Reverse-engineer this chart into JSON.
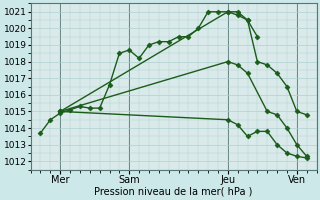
{
  "background_color": "#cce8e8",
  "plot_bg": "#daeaea",
  "grid_color": "#b0d0d0",
  "line_color": "#1a5c1a",
  "xlabel": "Pression niveau de la mer( hPa )",
  "ylim": [
    1011.5,
    1021.5
  ],
  "yticks": [
    1012,
    1013,
    1014,
    1015,
    1016,
    1017,
    1018,
    1019,
    1020,
    1021
  ],
  "xlim": [
    -0.5,
    14.0
  ],
  "xtick_labels": [
    "Mer",
    "Sam",
    "Jeu",
    "Ven"
  ],
  "xtick_positions": [
    1.0,
    4.5,
    9.5,
    13.0
  ],
  "vline_positions": [
    1.0,
    4.5,
    9.5,
    13.0
  ],
  "series": [
    {
      "name": "main_detailed",
      "x": [
        0.0,
        0.5,
        1.0,
        1.5,
        2.0,
        2.5,
        3.0,
        3.5,
        4.0,
        4.5,
        5.0,
        5.5,
        6.0,
        6.5,
        7.0,
        7.5,
        8.0,
        8.5,
        9.0,
        9.5,
        10.0,
        10.5,
        11.0
      ],
      "y": [
        1013.7,
        1014.5,
        1014.9,
        1015.1,
        1015.3,
        1015.2,
        1015.2,
        1016.6,
        1018.5,
        1018.7,
        1018.2,
        1019.0,
        1019.2,
        1019.2,
        1019.5,
        1019.5,
        1020.0,
        1021.0,
        1021.0,
        1021.0,
        1020.8,
        1020.5,
        1019.5
      ],
      "marker": "D",
      "markersize": 2.5,
      "linewidth": 1.0
    },
    {
      "name": "upper_envelope",
      "x": [
        1.0,
        9.5,
        10.0,
        10.5,
        11.0,
        11.5,
        12.0,
        12.5,
        13.0,
        13.5
      ],
      "y": [
        1015.0,
        1021.0,
        1021.0,
        1020.5,
        1018.0,
        1017.8,
        1017.3,
        1016.5,
        1015.0,
        1014.8
      ],
      "marker": "D",
      "markersize": 2.5,
      "linewidth": 1.0
    },
    {
      "name": "mid_envelope",
      "x": [
        1.0,
        9.5,
        10.0,
        10.5,
        11.5,
        12.0,
        12.5,
        13.0,
        13.5
      ],
      "y": [
        1015.0,
        1018.0,
        1017.8,
        1017.3,
        1015.0,
        1014.8,
        1014.0,
        1013.0,
        1012.3
      ],
      "marker": "D",
      "markersize": 2.5,
      "linewidth": 1.0
    },
    {
      "name": "lower_envelope",
      "x": [
        1.0,
        9.5,
        10.0,
        10.5,
        11.0,
        11.5,
        12.0,
        12.5,
        13.0,
        13.5
      ],
      "y": [
        1015.0,
        1014.5,
        1014.2,
        1013.5,
        1013.8,
        1013.8,
        1013.0,
        1012.5,
        1012.3,
        1012.2
      ],
      "marker": "D",
      "markersize": 2.5,
      "linewidth": 1.0
    }
  ]
}
